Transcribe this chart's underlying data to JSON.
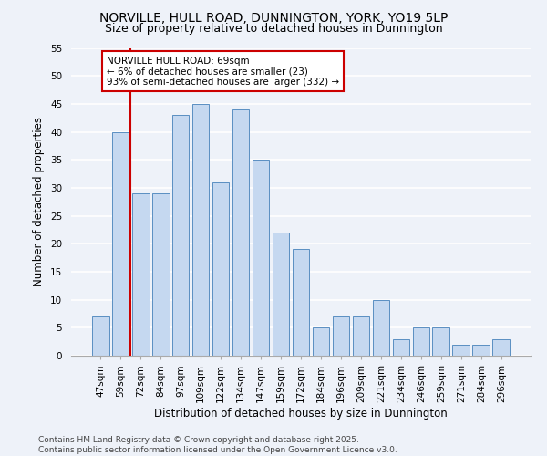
{
  "title": "NORVILLE, HULL ROAD, DUNNINGTON, YORK, YO19 5LP",
  "subtitle": "Size of property relative to detached houses in Dunnington",
  "xlabel": "Distribution of detached houses by size in Dunnington",
  "ylabel": "Number of detached properties",
  "footer_line1": "Contains HM Land Registry data © Crown copyright and database right 2025.",
  "footer_line2": "Contains public sector information licensed under the Open Government Licence v3.0.",
  "categories": [
    "47sqm",
    "59sqm",
    "72sqm",
    "84sqm",
    "97sqm",
    "109sqm",
    "122sqm",
    "134sqm",
    "147sqm",
    "159sqm",
    "172sqm",
    "184sqm",
    "196sqm",
    "209sqm",
    "221sqm",
    "234sqm",
    "246sqm",
    "259sqm",
    "271sqm",
    "284sqm",
    "296sqm"
  ],
  "values": [
    7,
    40,
    29,
    29,
    43,
    45,
    31,
    44,
    35,
    22,
    19,
    5,
    7,
    7,
    10,
    3,
    5,
    5,
    2,
    2,
    3
  ],
  "bar_color": "#c5d8f0",
  "bar_edge_color": "#5a8fc2",
  "red_line_x": 1.5,
  "annotation_title": "NORVILLE HULL ROAD: 69sqm",
  "annotation_line1": "← 6% of detached houses are smaller (23)",
  "annotation_line2": "93% of semi-detached houses are larger (332) →",
  "ylim": [
    0,
    55
  ],
  "yticks": [
    0,
    5,
    10,
    15,
    20,
    25,
    30,
    35,
    40,
    45,
    50,
    55
  ],
  "background_color": "#eef2f9",
  "grid_color": "#ffffff",
  "annotation_box_color": "#ffffff",
  "annotation_box_edge_color": "#cc0000",
  "red_line_color": "#cc0000",
  "title_fontsize": 10,
  "subtitle_fontsize": 9,
  "axis_label_fontsize": 8.5,
  "tick_fontsize": 7.5,
  "annotation_fontsize": 7.5,
  "footer_fontsize": 6.5
}
